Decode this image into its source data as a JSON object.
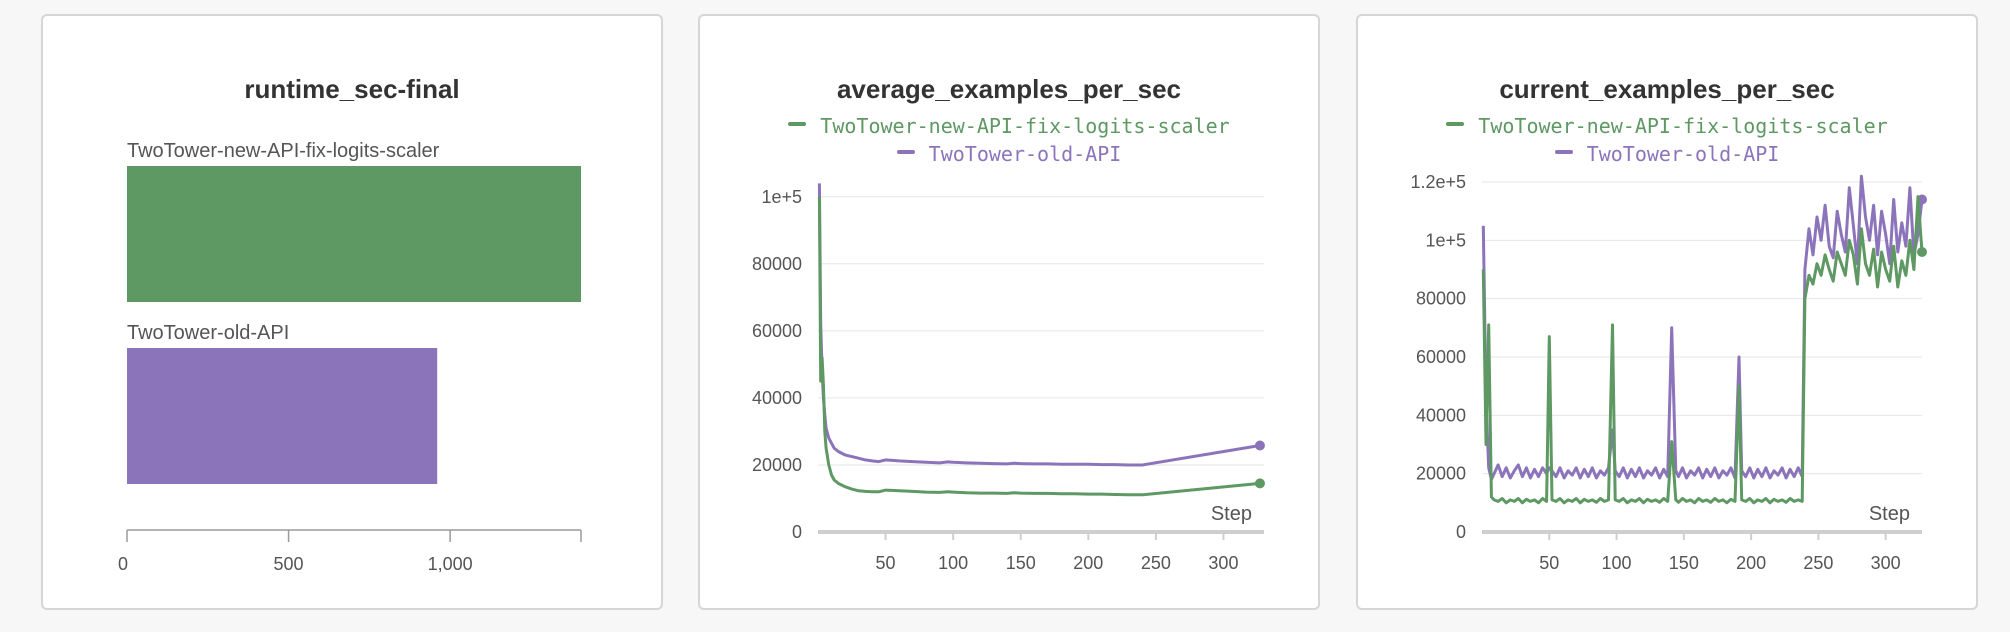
{
  "colors": {
    "new": "#5e9863",
    "old": "#8c74bb",
    "grid": "#e6e6e6",
    "axis": "#cfcfcf"
  },
  "chart_data": [
    {
      "type": "bar",
      "title": "runtime_sec-final",
      "categories": [
        "TwoTower-new-API-fix-logits-scaler",
        "TwoTower-old-API"
      ],
      "values": [
        1405,
        960
      ],
      "xlim": [
        0,
        1405
      ],
      "xticks": [
        "0",
        "500",
        "1,000"
      ],
      "xtick_values": [
        0,
        500,
        1000
      ],
      "grid": false
    },
    {
      "type": "line",
      "title": "average_examples_per_sec",
      "xlabel": "Step",
      "ylim": [
        0,
        105000
      ],
      "xlim": [
        0,
        330
      ],
      "yticks": [
        "0",
        "20000",
        "40000",
        "60000",
        "80000",
        "1e+5"
      ],
      "ytick_values": [
        0,
        20000,
        40000,
        60000,
        80000,
        100000
      ],
      "xticks": [
        "50",
        "100",
        "150",
        "200",
        "250",
        "300"
      ],
      "xtick_values": [
        50,
        100,
        150,
        200,
        250,
        300
      ],
      "legend": [
        "TwoTower-new-API-fix-logits-scaler",
        "TwoTower-old-API"
      ],
      "legend_position": "top-center",
      "grid": true,
      "series": [
        {
          "name": "TwoTower-new-API-fix-logits-scaler",
          "x": [
            1,
            2,
            3,
            4,
            5,
            6,
            8,
            10,
            12,
            15,
            20,
            25,
            30,
            35,
            40,
            45,
            50,
            60,
            70,
            80,
            90,
            96,
            100,
            110,
            120,
            130,
            140,
            145,
            150,
            160,
            170,
            180,
            190,
            200,
            210,
            220,
            230,
            240,
            327
          ],
          "values": [
            100000,
            45000,
            52000,
            44000,
            30000,
            25000,
            20000,
            17000,
            15500,
            14500,
            13500,
            12800,
            12300,
            12100,
            12000,
            12000,
            12500,
            12300,
            12100,
            11900,
            11800,
            12000,
            11900,
            11700,
            11600,
            11600,
            11500,
            11700,
            11600,
            11500,
            11500,
            11400,
            11400,
            11300,
            11300,
            11200,
            11100,
            11100,
            14500
          ]
        },
        {
          "name": "TwoTower-old-API",
          "x": [
            1,
            2,
            3,
            4,
            5,
            6,
            8,
            10,
            12,
            15,
            20,
            25,
            30,
            35,
            40,
            45,
            50,
            60,
            70,
            80,
            90,
            96,
            100,
            110,
            120,
            130,
            140,
            145,
            150,
            160,
            170,
            180,
            190,
            200,
            210,
            220,
            230,
            240,
            327
          ],
          "values": [
            104000,
            62000,
            48000,
            40000,
            35000,
            31000,
            28000,
            26500,
            25000,
            24000,
            23000,
            22500,
            22000,
            21500,
            21200,
            21000,
            21500,
            21200,
            21000,
            20800,
            20600,
            20900,
            20800,
            20600,
            20500,
            20400,
            20300,
            20500,
            20400,
            20300,
            20300,
            20200,
            20200,
            20200,
            20100,
            20100,
            20000,
            20000,
            25800
          ]
        }
      ]
    },
    {
      "type": "line",
      "title": "current_examples_per_sec",
      "xlabel": "Step",
      "ylim": [
        0,
        120000
      ],
      "xlim": [
        0,
        327
      ],
      "yticks": [
        "0",
        "20000",
        "40000",
        "60000",
        "80000",
        "1e+5",
        "1.2e+5"
      ],
      "ytick_values": [
        0,
        20000,
        40000,
        60000,
        80000,
        100000,
        120000
      ],
      "xticks": [
        "50",
        "100",
        "150",
        "200",
        "250",
        "300"
      ],
      "xtick_values": [
        50,
        100,
        150,
        200,
        250,
        300
      ],
      "legend": [
        "TwoTower-new-API-fix-logits-scaler",
        "TwoTower-old-API"
      ],
      "legend_position": "top-center",
      "grid": true,
      "series": [
        {
          "name": "TwoTower-new-API-fix-logits-scaler",
          "x": [
            1,
            3,
            5,
            7,
            9,
            12,
            15,
            18,
            21,
            24,
            27,
            30,
            33,
            36,
            39,
            42,
            45,
            48,
            50,
            52,
            55,
            58,
            61,
            64,
            67,
            70,
            73,
            76,
            79,
            82,
            85,
            88,
            91,
            94,
            97,
            99,
            102,
            105,
            108,
            111,
            114,
            117,
            120,
            123,
            126,
            129,
            132,
            135,
            138,
            141,
            144,
            146,
            149,
            152,
            155,
            158,
            161,
            164,
            167,
            170,
            173,
            176,
            179,
            182,
            185,
            188,
            191,
            193,
            196,
            199,
            202,
            205,
            208,
            211,
            214,
            217,
            220,
            223,
            226,
            229,
            232,
            235,
            238,
            240,
            243,
            246,
            249,
            252,
            255,
            258,
            261,
            264,
            267,
            270,
            273,
            276,
            279,
            282,
            285,
            288,
            291,
            294,
            297,
            300,
            303,
            306,
            309,
            312,
            315,
            318,
            321,
            324,
            327
          ],
          "values": [
            90000,
            30000,
            71000,
            12000,
            11000,
            10500,
            11500,
            10000,
            11000,
            10500,
            11500,
            10000,
            11200,
            10500,
            11000,
            10000,
            11500,
            10500,
            67000,
            11000,
            10500,
            11500,
            10000,
            11000,
            10500,
            11500,
            10000,
            11200,
            10500,
            11000,
            10200,
            11500,
            10500,
            11000,
            71000,
            11000,
            10500,
            11500,
            10000,
            11000,
            10500,
            11500,
            10000,
            11200,
            10500,
            11000,
            10200,
            11500,
            10500,
            31000,
            11000,
            10200,
            11500,
            10500,
            11000,
            10000,
            11500,
            10500,
            11000,
            10200,
            11500,
            10500,
            11000,
            10000,
            11200,
            10500,
            50000,
            11000,
            10500,
            11500,
            10000,
            11000,
            10500,
            11500,
            10000,
            11200,
            10500,
            11000,
            10200,
            11500,
            10500,
            11000,
            10500,
            80000,
            88000,
            85000,
            92000,
            88000,
            95000,
            90000,
            86000,
            96000,
            92000,
            88000,
            100000,
            95000,
            85000,
            104000,
            92000,
            88000,
            97000,
            84000,
            96000,
            90000,
            86000,
            98000,
            84000,
            93000,
            88000,
            100000,
            90000,
            115000,
            96000
          ]
        },
        {
          "name": "TwoTower-old-API",
          "x": [
            1,
            3,
            5,
            7,
            9,
            12,
            15,
            18,
            21,
            24,
            27,
            30,
            33,
            36,
            39,
            42,
            45,
            48,
            50,
            52,
            55,
            58,
            61,
            64,
            67,
            70,
            73,
            76,
            79,
            82,
            85,
            88,
            91,
            94,
            97,
            99,
            102,
            105,
            108,
            111,
            114,
            117,
            120,
            123,
            126,
            129,
            132,
            135,
            138,
            141,
            144,
            146,
            149,
            152,
            155,
            158,
            161,
            164,
            167,
            170,
            173,
            176,
            179,
            182,
            185,
            188,
            191,
            193,
            196,
            199,
            202,
            205,
            208,
            211,
            214,
            217,
            220,
            223,
            226,
            229,
            232,
            235,
            238,
            240,
            243,
            246,
            249,
            252,
            255,
            258,
            261,
            264,
            267,
            270,
            273,
            276,
            279,
            282,
            285,
            288,
            291,
            294,
            297,
            300,
            303,
            306,
            309,
            312,
            315,
            318,
            321,
            324,
            327
          ],
          "values": [
            105000,
            45000,
            22000,
            18000,
            20000,
            23000,
            19000,
            22000,
            18500,
            21000,
            23000,
            19000,
            22000,
            18500,
            21500,
            19000,
            22000,
            20000,
            22000,
            21000,
            19000,
            22000,
            18500,
            21000,
            19500,
            22000,
            18500,
            21500,
            19000,
            22000,
            18500,
            21000,
            19500,
            22000,
            35000,
            21000,
            19000,
            22000,
            18500,
            21500,
            19000,
            22000,
            18500,
            21000,
            19500,
            22000,
            18500,
            21500,
            19000,
            70000,
            21000,
            19000,
            22000,
            18500,
            21000,
            19500,
            22000,
            18500,
            21500,
            19000,
            22000,
            18500,
            21000,
            19500,
            22000,
            18500,
            60000,
            21000,
            19000,
            22000,
            18500,
            21500,
            19000,
            22000,
            18500,
            21000,
            19500,
            22000,
            18500,
            21500,
            19000,
            22000,
            19000,
            90000,
            104000,
            95000,
            108000,
            100000,
            112000,
            98000,
            94000,
            110000,
            102000,
            96000,
            118000,
            105000,
            92000,
            122000,
            108000,
            100000,
            112000,
            95000,
            110000,
            102000,
            92000,
            114000,
            96000,
            106000,
            98000,
            118000,
            95000,
            102000,
            114000
          ]
        }
      ]
    }
  ]
}
